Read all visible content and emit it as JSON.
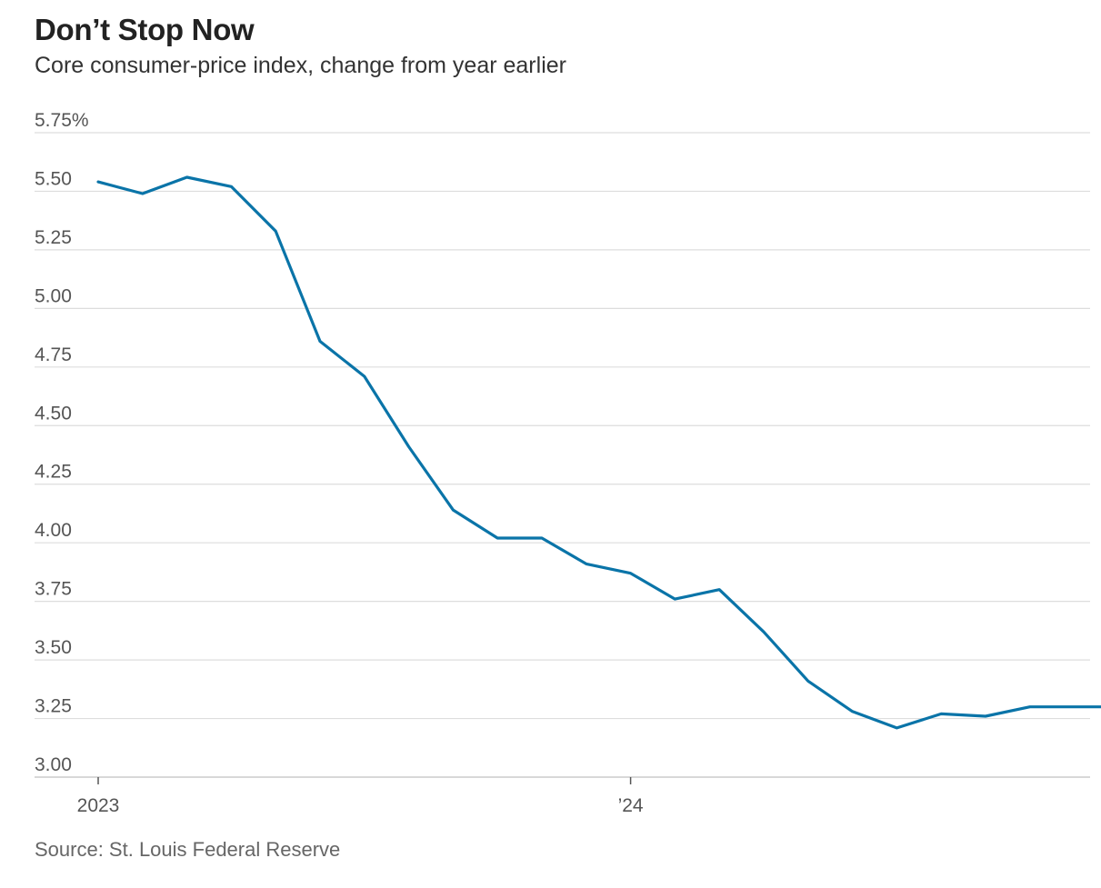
{
  "header": {
    "title": "Don’t Stop Now",
    "subtitle": "Core consumer-price index, change from year earlier"
  },
  "footer": {
    "source": "Source: St. Louis Federal Reserve"
  },
  "colors": {
    "line": "#0a74a8",
    "grid": "#dddddd",
    "axis_text": "#555555",
    "title": "#222222"
  },
  "chart_data": {
    "type": "line",
    "title": "Don’t Stop Now",
    "subtitle": "Core consumer-price index, change from year earlier",
    "ylim": [
      3.0,
      5.75
    ],
    "y_ticks": [
      {
        "value": 5.75,
        "label": "5.75%"
      },
      {
        "value": 5.5,
        "label": "5.50"
      },
      {
        "value": 5.25,
        "label": "5.25"
      },
      {
        "value": 5.0,
        "label": "5.00"
      },
      {
        "value": 4.75,
        "label": "4.75"
      },
      {
        "value": 4.5,
        "label": "4.50"
      },
      {
        "value": 4.25,
        "label": "4.25"
      },
      {
        "value": 4.0,
        "label": "4.00"
      },
      {
        "value": 3.75,
        "label": "3.75"
      },
      {
        "value": 3.5,
        "label": "3.50"
      },
      {
        "value": 3.25,
        "label": "3.25"
      },
      {
        "value": 3.0,
        "label": "3.00"
      }
    ],
    "x_ticks": [
      {
        "value": "2023-01",
        "label": "2023"
      },
      {
        "value": "2024-01",
        "label": "’24"
      }
    ],
    "grid": true,
    "legend": "none",
    "series": [
      {
        "x": [
          "2023-01",
          "2023-02",
          "2023-03",
          "2023-04",
          "2023-05",
          "2023-06",
          "2023-07",
          "2023-08",
          "2023-09",
          "2023-10",
          "2023-11",
          "2023-12",
          "2024-01",
          "2024-02",
          "2024-03",
          "2024-04",
          "2024-05",
          "2024-06",
          "2024-07",
          "2024-08",
          "2024-09",
          "2024-10",
          "2024-11",
          "2024-12"
        ],
        "values": [
          5.54,
          5.49,
          5.56,
          5.52,
          5.33,
          4.86,
          4.71,
          4.41,
          4.14,
          4.02,
          4.02,
          3.91,
          3.87,
          3.76,
          3.8,
          3.62,
          3.41,
          3.28,
          3.21,
          3.27,
          3.26,
          3.3,
          3.3,
          3.3
        ]
      }
    ]
  }
}
